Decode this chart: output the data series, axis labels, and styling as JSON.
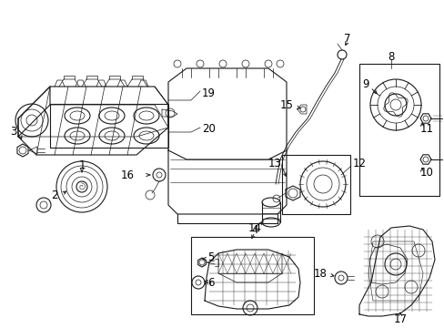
{
  "background_color": "#ffffff",
  "line_color": "#1a1a1a",
  "label_color": "#000000",
  "fig_width": 4.89,
  "fig_height": 3.6,
  "dpi": 100,
  "label_fontsize": 8.5,
  "lw_thin": 0.5,
  "lw_med": 0.8,
  "lw_thick": 1.2
}
